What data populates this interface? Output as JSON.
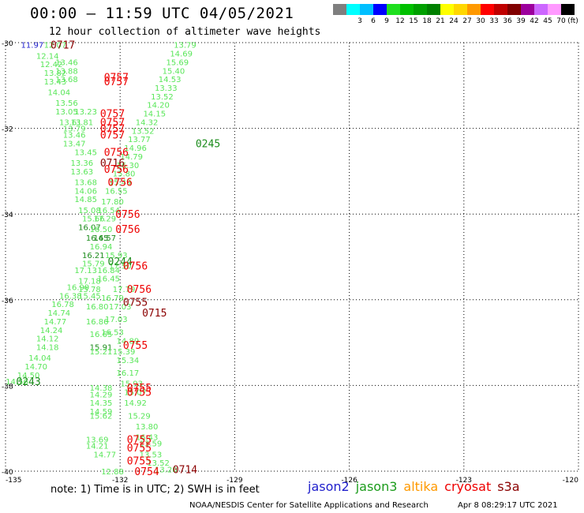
{
  "header": {
    "title": "00:00 – 11:59 UTC 04/05/2021",
    "subtitle": "12 hour collection of altimeter wave heights"
  },
  "legend": {
    "unit": "(ft)",
    "bins": [
      {
        "label": "",
        "color": "#7f7f7f"
      },
      {
        "label": "3",
        "color": "#00ffff"
      },
      {
        "label": "6",
        "color": "#00bfff"
      },
      {
        "label": "9",
        "color": "#0000ff"
      },
      {
        "label": "12",
        "color": "#1fdf1f"
      },
      {
        "label": "15",
        "color": "#00c000"
      },
      {
        "label": "18",
        "color": "#00a000"
      },
      {
        "label": "21",
        "color": "#008000"
      },
      {
        "label": "24",
        "color": "#ffff00"
      },
      {
        "label": "27",
        "color": "#ffd700"
      },
      {
        "label": "30",
        "color": "#ff9900"
      },
      {
        "label": "33",
        "color": "#ff0000"
      },
      {
        "label": "36",
        "color": "#c00000"
      },
      {
        "label": "39",
        "color": "#800000"
      },
      {
        "label": "42",
        "color": "#9c009c"
      },
      {
        "label": "45",
        "color": "#cc66ff"
      },
      {
        "label": "70",
        "color": "#ff99ff"
      },
      {
        "label": "",
        "color": "#000000"
      }
    ]
  },
  "chart_data": {
    "type": "scatter",
    "xlim": [
      -135,
      -120
    ],
    "ylim": [
      -40,
      -30
    ],
    "xticks": [
      -135,
      -132,
      -129,
      -126,
      -123,
      -120
    ],
    "yticks": [
      -30,
      -32,
      -34,
      -36,
      -38,
      -40
    ],
    "grid": true,
    "colors": {
      "light": "#59e659",
      "dark": "#1c8c1c",
      "blue": "#1f1fcc",
      "red": "#ee0000",
      "darkred": "#8b0000"
    },
    "points": [
      {
        "x": -134.3,
        "y": -30.05,
        "v": "11.97",
        "c": "blue"
      },
      {
        "x": -133.7,
        "y": -30.05,
        "v": "12.07",
        "c": "light"
      },
      {
        "x": -133.9,
        "y": -30.3,
        "v": "12.14",
        "c": "light"
      },
      {
        "x": -133.8,
        "y": -30.5,
        "v": "12.42",
        "c": "light"
      },
      {
        "x": -133.4,
        "y": -30.45,
        "v": "13.46",
        "c": "light"
      },
      {
        "x": -133.7,
        "y": -30.7,
        "v": "13.82",
        "c": "light"
      },
      {
        "x": -133.4,
        "y": -30.65,
        "v": "13.88",
        "c": "light"
      },
      {
        "x": -133.7,
        "y": -30.9,
        "v": "13.43",
        "c": "light"
      },
      {
        "x": -133.4,
        "y": -30.85,
        "v": "13.68",
        "c": "light"
      },
      {
        "x": -133.6,
        "y": -31.15,
        "v": "14.04",
        "c": "light"
      },
      {
        "x": -133.4,
        "y": -31.4,
        "v": "13.56",
        "c": "light"
      },
      {
        "x": -133.4,
        "y": -31.6,
        "v": "13.05",
        "c": "light"
      },
      {
        "x": -132.9,
        "y": -31.6,
        "v": "13.23",
        "c": "light"
      },
      {
        "x": -133.3,
        "y": -31.85,
        "v": "13.61",
        "c": "light"
      },
      {
        "x": -133.0,
        "y": -31.85,
        "v": "13.81",
        "c": "light"
      },
      {
        "x": -133.2,
        "y": -32.0,
        "v": "13.79",
        "c": "light"
      },
      {
        "x": -133.2,
        "y": -32.15,
        "v": "13.46",
        "c": "light"
      },
      {
        "x": -133.2,
        "y": -32.35,
        "v": "13.47",
        "c": "light"
      },
      {
        "x": -132.9,
        "y": -32.55,
        "v": "13.45",
        "c": "light"
      },
      {
        "x": -133.0,
        "y": -32.8,
        "v": "13.36",
        "c": "light"
      },
      {
        "x": -133.0,
        "y": -33.0,
        "v": "13.63",
        "c": "light"
      },
      {
        "x": -132.9,
        "y": -33.25,
        "v": "13.68",
        "c": "light"
      },
      {
        "x": -132.9,
        "y": -33.45,
        "v": "14.06",
        "c": "light"
      },
      {
        "x": -132.9,
        "y": -33.65,
        "v": "14.85",
        "c": "light"
      },
      {
        "x": -132.8,
        "y": -33.9,
        "v": "15.08",
        "c": "light"
      },
      {
        "x": -132.7,
        "y": -34.1,
        "v": "15.66",
        "c": "light"
      },
      {
        "x": -132.8,
        "y": -34.3,
        "v": "16.07",
        "c": "dark"
      },
      {
        "x": -132.5,
        "y": -34.35,
        "v": "16.50",
        "c": "light"
      },
      {
        "x": -132.6,
        "y": -34.55,
        "v": "16.45",
        "c": "dark"
      },
      {
        "x": -132.4,
        "y": -34.55,
        "v": "16.57",
        "c": "dark"
      },
      {
        "x": -132.5,
        "y": -34.75,
        "v": "16.94",
        "c": "light"
      },
      {
        "x": -132.7,
        "y": -34.95,
        "v": "16.21",
        "c": "dark"
      },
      {
        "x": -132.7,
        "y": -35.15,
        "v": "15.79",
        "c": "light"
      },
      {
        "x": -132.9,
        "y": -35.3,
        "v": "17.13",
        "c": "light"
      },
      {
        "x": -132.3,
        "y": -35.3,
        "v": "16.84",
        "c": "light"
      },
      {
        "x": -132.8,
        "y": -35.55,
        "v": "17.18",
        "c": "light"
      },
      {
        "x": -132.3,
        "y": -35.5,
        "v": "16.45",
        "c": "light"
      },
      {
        "x": -133.1,
        "y": -35.7,
        "v": "16.99",
        "c": "light"
      },
      {
        "x": -132.8,
        "y": -35.75,
        "v": "15.78",
        "c": "light"
      },
      {
        "x": -133.3,
        "y": -35.9,
        "v": "16.38",
        "c": "light"
      },
      {
        "x": -132.8,
        "y": -35.9,
        "v": "15.45",
        "c": "light"
      },
      {
        "x": -132.2,
        "y": -35.95,
        "v": "16.79",
        "c": "light"
      },
      {
        "x": -133.5,
        "y": -36.1,
        "v": "16.78",
        "c": "light"
      },
      {
        "x": -132.6,
        "y": -36.15,
        "v": "16.80",
        "c": "light"
      },
      {
        "x": -133.6,
        "y": -36.3,
        "v": "14.74",
        "c": "light"
      },
      {
        "x": -133.7,
        "y": -36.5,
        "v": "14.77",
        "c": "light"
      },
      {
        "x": -132.6,
        "y": -36.5,
        "v": "16.86",
        "c": "light"
      },
      {
        "x": -132.1,
        "y": -36.45,
        "v": "17.03",
        "c": "light"
      },
      {
        "x": -133.8,
        "y": -36.7,
        "v": "14.24",
        "c": "light"
      },
      {
        "x": -132.5,
        "y": -36.8,
        "v": "16.65",
        "c": "light"
      },
      {
        "x": -132.2,
        "y": -36.75,
        "v": "16.53",
        "c": "light"
      },
      {
        "x": -133.9,
        "y": -36.9,
        "v": "14.12",
        "c": "light"
      },
      {
        "x": -131.8,
        "y": -36.95,
        "v": "14.89",
        "c": "light"
      },
      {
        "x": -133.9,
        "y": -37.1,
        "v": "14.18",
        "c": "light"
      },
      {
        "x": -132.5,
        "y": -37.1,
        "v": "15.91",
        "c": "dark"
      },
      {
        "x": -132.5,
        "y": -37.2,
        "v": "15.21",
        "c": "light"
      },
      {
        "x": -131.9,
        "y": -37.2,
        "v": "15.39",
        "c": "light"
      },
      {
        "x": -134.1,
        "y": -37.35,
        "v": "14.04",
        "c": "light"
      },
      {
        "x": -131.8,
        "y": -37.4,
        "v": "15.34",
        "c": "light"
      },
      {
        "x": -134.2,
        "y": -37.55,
        "v": "14.70",
        "c": "light"
      },
      {
        "x": -134.4,
        "y": -37.75,
        "v": "14.50",
        "c": "light"
      },
      {
        "x": -131.8,
        "y": -37.7,
        "v": "16.17",
        "c": "light"
      },
      {
        "x": -134.7,
        "y": -37.9,
        "v": "14.56",
        "c": "light"
      },
      {
        "x": -131.7,
        "y": -37.95,
        "v": "15.93",
        "c": "light"
      },
      {
        "x": -132.5,
        "y": -38.05,
        "v": "14.38",
        "c": "light"
      },
      {
        "x": -132.5,
        "y": -38.2,
        "v": "14.29",
        "c": "light"
      },
      {
        "x": -131.6,
        "y": -38.15,
        "v": "15.07",
        "c": "light"
      },
      {
        "x": -132.5,
        "y": -38.4,
        "v": "14.35",
        "c": "light"
      },
      {
        "x": -131.6,
        "y": -38.4,
        "v": "14.92",
        "c": "light"
      },
      {
        "x": -132.5,
        "y": -38.6,
        "v": "14.59",
        "c": "light"
      },
      {
        "x": -132.5,
        "y": -38.7,
        "v": "15.62",
        "c": "light"
      },
      {
        "x": -131.5,
        "y": -38.7,
        "v": "15.29",
        "c": "light"
      },
      {
        "x": -131.3,
        "y": -38.95,
        "v": "13.80",
        "c": "light"
      },
      {
        "x": -131.3,
        "y": -39.2,
        "v": "16.43",
        "c": "light"
      },
      {
        "x": -132.6,
        "y": -39.25,
        "v": "13.69",
        "c": "light"
      },
      {
        "x": -131.2,
        "y": -39.35,
        "v": "13.59",
        "c": "light"
      },
      {
        "x": -132.6,
        "y": -39.4,
        "v": "14.21",
        "c": "light"
      },
      {
        "x": -131.2,
        "y": -39.6,
        "v": "13.53",
        "c": "light"
      },
      {
        "x": -132.4,
        "y": -39.6,
        "v": "14.77",
        "c": "light"
      },
      {
        "x": -131.0,
        "y": -39.8,
        "v": "13.52",
        "c": "light"
      },
      {
        "x": -132.2,
        "y": -40.0,
        "v": "12.88",
        "c": "light"
      },
      {
        "x": -130.8,
        "y": -39.95,
        "v": "13.20",
        "c": "light"
      },
      {
        "x": -130.3,
        "y": -30.05,
        "v": "13.79",
        "c": "light"
      },
      {
        "x": -130.4,
        "y": -30.25,
        "v": "14.69",
        "c": "light"
      },
      {
        "x": -130.5,
        "y": -30.45,
        "v": "15.69",
        "c": "light"
      },
      {
        "x": -130.6,
        "y": -30.65,
        "v": "15.40",
        "c": "light"
      },
      {
        "x": -130.7,
        "y": -30.85,
        "v": "14.53",
        "c": "light"
      },
      {
        "x": -130.8,
        "y": -31.05,
        "v": "13.33",
        "c": "light"
      },
      {
        "x": -130.9,
        "y": -31.25,
        "v": "13.52",
        "c": "light"
      },
      {
        "x": -131.0,
        "y": -31.45,
        "v": "14.20",
        "c": "light"
      },
      {
        "x": -131.1,
        "y": -31.65,
        "v": "14.15",
        "c": "light"
      },
      {
        "x": -131.3,
        "y": -31.85,
        "v": "14.32",
        "c": "light"
      },
      {
        "x": -131.4,
        "y": -32.05,
        "v": "13.52",
        "c": "light"
      },
      {
        "x": -131.5,
        "y": -32.25,
        "v": "13.77",
        "c": "light"
      },
      {
        "x": -131.6,
        "y": -32.45,
        "v": "14.96",
        "c": "light"
      },
      {
        "x": -131.7,
        "y": -32.65,
        "v": "14.79",
        "c": "light"
      },
      {
        "x": -131.8,
        "y": -32.85,
        "v": "16.30",
        "c": "light"
      },
      {
        "x": -131.9,
        "y": -33.05,
        "v": "15.80",
        "c": "light"
      },
      {
        "x": -132.0,
        "y": -33.25,
        "v": "15.49",
        "c": "light"
      },
      {
        "x": -132.1,
        "y": -33.45,
        "v": "16.55",
        "c": "light"
      },
      {
        "x": -132.2,
        "y": -33.7,
        "v": "17.80",
        "c": "light"
      },
      {
        "x": -132.3,
        "y": -33.9,
        "v": "16.54",
        "c": "light"
      },
      {
        "x": -132.4,
        "y": -34.1,
        "v": "17.29",
        "c": "light"
      },
      {
        "x": -132.1,
        "y": -34.95,
        "v": "15.93",
        "c": "light"
      },
      {
        "x": -132.0,
        "y": -35.2,
        "v": "17.50",
        "c": "light"
      },
      {
        "x": -131.9,
        "y": -35.75,
        "v": "17.79",
        "c": "light"
      },
      {
        "x": -132.0,
        "y": -36.15,
        "v": "17.03",
        "c": "light"
      }
    ],
    "passes": [
      {
        "x": -133.5,
        "y": -30.05,
        "t": "0717",
        "c": "darkred"
      },
      {
        "x": -132.1,
        "y": -30.8,
        "t": "0757",
        "c": "red"
      },
      {
        "x": -132.1,
        "y": -30.9,
        "t": "0757",
        "c": "red"
      },
      {
        "x": -132.2,
        "y": -31.65,
        "t": "0757",
        "c": "red"
      },
      {
        "x": -132.2,
        "y": -31.85,
        "t": "0757",
        "c": "red"
      },
      {
        "x": -132.2,
        "y": -32.0,
        "t": "0757",
        "c": "red"
      },
      {
        "x": -132.2,
        "y": -32.15,
        "t": "0757",
        "c": "red"
      },
      {
        "x": -129.7,
        "y": -32.35,
        "t": "0245",
        "c": "dark"
      },
      {
        "x": -132.1,
        "y": -32.55,
        "t": "0756",
        "c": "red"
      },
      {
        "x": -132.2,
        "y": -32.8,
        "t": "0716",
        "c": "darkred"
      },
      {
        "x": -132.1,
        "y": -32.95,
        "t": "0756",
        "c": "red"
      },
      {
        "x": -132.0,
        "y": -33.25,
        "t": "0756",
        "c": "red"
      },
      {
        "x": -131.8,
        "y": -34.0,
        "t": "0756",
        "c": "red"
      },
      {
        "x": -131.8,
        "y": -34.35,
        "t": "0756",
        "c": "red"
      },
      {
        "x": -132.0,
        "y": -35.1,
        "t": "0244",
        "c": "dark"
      },
      {
        "x": -131.6,
        "y": -35.2,
        "t": "0756",
        "c": "red"
      },
      {
        "x": -131.5,
        "y": -35.75,
        "t": "0756",
        "c": "red"
      },
      {
        "x": -131.6,
        "y": -36.05,
        "t": "0755",
        "c": "darkred"
      },
      {
        "x": -131.1,
        "y": -36.3,
        "t": "0715",
        "c": "darkred"
      },
      {
        "x": -131.6,
        "y": -37.05,
        "t": "0755",
        "c": "red"
      },
      {
        "x": -134.4,
        "y": -37.9,
        "t": "0243",
        "c": "dark"
      },
      {
        "x": -131.5,
        "y": -38.05,
        "t": "0755",
        "c": "red"
      },
      {
        "x": -131.5,
        "y": -38.15,
        "t": "0755",
        "c": "red"
      },
      {
        "x": -131.5,
        "y": -39.25,
        "t": "0755",
        "c": "red"
      },
      {
        "x": -131.5,
        "y": -39.45,
        "t": "0755",
        "c": "red"
      },
      {
        "x": -131.5,
        "y": -39.75,
        "t": "0755",
        "c": "red"
      },
      {
        "x": -131.3,
        "y": -40.0,
        "t": "0754",
        "c": "red"
      },
      {
        "x": -130.3,
        "y": -39.95,
        "t": "0714",
        "c": "darkred"
      }
    ]
  },
  "footer": {
    "note": "note:  1) Time is in UTC;  2) SWH is in feet",
    "satellites": [
      {
        "name": "jason2",
        "color": "#1f1fcc"
      },
      {
        "name": "jason3",
        "color": "#1c9c1c"
      },
      {
        "name": "altika",
        "color": "#ff9900"
      },
      {
        "name": "cryosat",
        "color": "#ee0000"
      },
      {
        "name": "s3a",
        "color": "#8b0000"
      }
    ],
    "credit": "NOAA/NESDIS Center for Satellite Applications and Research",
    "timestamp": "Apr  8 08:29:17 UTC 2021"
  }
}
